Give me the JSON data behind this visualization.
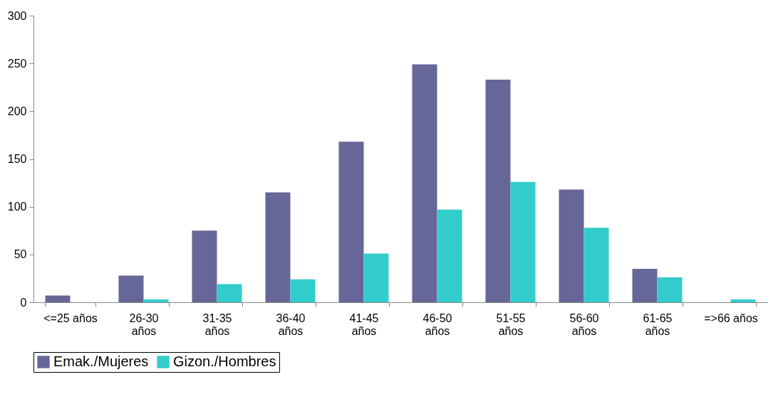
{
  "chart_data": {
    "type": "bar",
    "categories": [
      "<=25 años",
      "26-30 años",
      "31-35 años",
      "36-40 años",
      "41-45 años",
      "46-50 años",
      "51-55 años",
      "56-60 años",
      "61-65 años",
      "=>66 años"
    ],
    "series": [
      {
        "name": "Emak./Mujeres",
        "color": "#666699",
        "values": [
          7,
          28,
          75,
          115,
          168,
          249,
          233,
          118,
          35,
          0
        ]
      },
      {
        "name": "Gizon./Hombres",
        "color": "#33cccc",
        "values": [
          0,
          3,
          19,
          24,
          51,
          97,
          126,
          78,
          26,
          3
        ]
      }
    ],
    "ylim": [
      0,
      300
    ],
    "yticks": [
      0,
      50,
      100,
      150,
      200,
      250,
      300
    ],
    "grid": false,
    "legend": "bottom"
  }
}
